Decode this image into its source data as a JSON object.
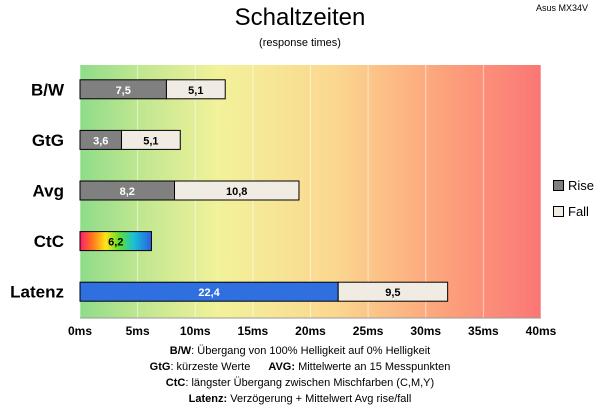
{
  "model": "Asus MX34V",
  "chart_data": {
    "type": "bar",
    "title": "Schaltzeiten",
    "subtitle": "(response times)",
    "orientation": "horizontal",
    "stacked": true,
    "categories": [
      "B/W",
      "GtG",
      "Avg",
      "CtC",
      "Latenz"
    ],
    "series": [
      {
        "name": "Rise",
        "values": [
          7.5,
          3.6,
          8.2,
          6.2,
          22.4
        ],
        "labels": [
          "7,5",
          "3,6",
          "8,2",
          "6,2",
          "22,4"
        ]
      },
      {
        "name": "Fall",
        "values": [
          5.1,
          5.1,
          10.8,
          null,
          9.5
        ],
        "labels": [
          "5,1",
          "5,1",
          "10,8",
          "",
          "9,5"
        ]
      }
    ],
    "xlim": [
      0,
      40
    ],
    "x_ticks": [
      "0ms",
      "5ms",
      "10ms",
      "15ms",
      "20ms",
      "25ms",
      "30ms",
      "35ms",
      "40ms"
    ],
    "background": "gradient green-yellow-orange-red",
    "grid": true,
    "legend_position": "right",
    "colors": {
      "rise": "#808080",
      "fall": "#f0ece4",
      "latenz_rise": "#2f6fe0",
      "ctc": "rainbow"
    }
  },
  "notes": {
    "bw_key": "B/W",
    "bw_text": ": Übergang von 100% Helligkeit auf 0% Helligkeit",
    "gtg_key": "GtG",
    "gtg_text": ": kürzeste Werte",
    "avg_key": "AVG:",
    "avg_text": " Mittelwerte an 15 Messpunkten",
    "ctc_key": "CtC",
    "ctc_text": ": längster Übergang zwischen Mischfarben (C,M,Y)",
    "latenz_key": "Latenz:",
    "latenz_text": " Verzögerung + Mittelwert Avg rise/fall"
  }
}
